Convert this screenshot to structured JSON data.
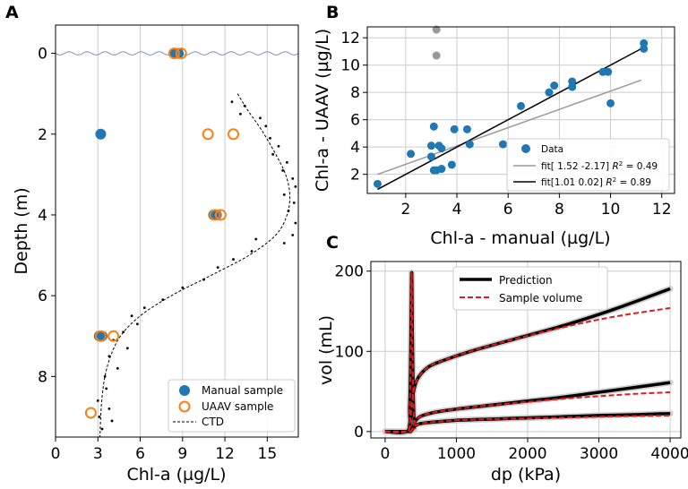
{
  "chart_data": [
    {
      "panel": "A",
      "type": "scatter",
      "xlabel": "Chl-a (µg/L)",
      "ylabel": "Depth (m)",
      "xlim": [
        0,
        17.2
      ],
      "ylim": [
        9.5,
        -0.7
      ],
      "y_inverted": true,
      "xticks": [
        0,
        3,
        6,
        9,
        12,
        15
      ],
      "yticks": [
        0,
        2,
        4,
        6,
        8
      ],
      "grid": "vertical",
      "legend": [
        "Manual sample",
        "UAAV sample",
        "CTD"
      ],
      "legend_location": "lower-right",
      "series": [
        {
          "name": "Manual sample",
          "points": [
            [
              8.5,
              0
            ],
            [
              8.7,
              0
            ],
            [
              3.2,
              2.0
            ],
            [
              11.2,
              4.0
            ],
            [
              11.4,
              4.0
            ],
            [
              3.1,
              7.0
            ],
            [
              3.3,
              7.0
            ]
          ]
        },
        {
          "name": "UAAV sample",
          "points": [
            [
              8.4,
              0
            ],
            [
              8.9,
              0
            ],
            [
              10.8,
              2.0
            ],
            [
              12.6,
              2.0
            ],
            [
              11.3,
              4.0
            ],
            [
              11.7,
              4.0
            ],
            [
              3.2,
              7.0
            ],
            [
              4.1,
              7.0
            ],
            [
              2.5,
              8.9
            ]
          ]
        },
        {
          "name": "CTD (fit)",
          "points": [
            [
              12.9,
              1.0
            ],
            [
              13.6,
              1.4
            ],
            [
              14.6,
              1.9
            ],
            [
              15.6,
              2.5
            ],
            [
              16.3,
              3.0
            ],
            [
              16.6,
              3.5
            ],
            [
              16.4,
              4.0
            ],
            [
              15.6,
              4.5
            ],
            [
              13.7,
              5.0
            ],
            [
              11.0,
              5.5
            ],
            [
              8.2,
              6.0
            ],
            [
              6.0,
              6.5
            ],
            [
              4.6,
              7.0
            ],
            [
              3.9,
              7.5
            ],
            [
              3.5,
              8.0
            ],
            [
              3.3,
              8.5
            ],
            [
              3.2,
              9.0
            ],
            [
              3.15,
              9.5
            ]
          ]
        },
        {
          "name": "CTD (raw)",
          "points": [
            [
              12.5,
              1.2
            ],
            [
              13.4,
              1.3
            ],
            [
              13.1,
              1.5
            ],
            [
              14.5,
              1.6
            ],
            [
              14.9,
              1.8
            ],
            [
              15.2,
              2.1
            ],
            [
              15.8,
              2.3
            ],
            [
              15.4,
              2.5
            ],
            [
              16.4,
              2.7
            ],
            [
              16.1,
              2.9
            ],
            [
              16.8,
              3.1
            ],
            [
              17.0,
              3.3
            ],
            [
              16.2,
              3.5
            ],
            [
              16.9,
              3.7
            ],
            [
              16.5,
              3.9
            ],
            [
              17.0,
              4.2
            ],
            [
              16.8,
              4.5
            ],
            [
              16.2,
              4.7
            ],
            [
              14.2,
              4.6
            ],
            [
              13.9,
              4.9
            ],
            [
              12.6,
              5.1
            ],
            [
              11.5,
              5.3
            ],
            [
              10.5,
              5.6
            ],
            [
              9.0,
              5.8
            ],
            [
              7.6,
              6.1
            ],
            [
              6.3,
              6.3
            ],
            [
              5.4,
              6.5
            ],
            [
              5.8,
              6.7
            ],
            [
              4.8,
              6.9
            ],
            [
              4.1,
              7.1
            ],
            [
              5.1,
              7.3
            ],
            [
              3.8,
              7.5
            ],
            [
              4.4,
              7.8
            ],
            [
              3.5,
              8.0
            ],
            [
              3.6,
              8.3
            ],
            [
              3.0,
              8.6
            ],
            [
              3.8,
              8.8
            ],
            [
              3.1,
              9.0
            ],
            [
              4.0,
              9.1
            ],
            [
              3.3,
              9.3
            ]
          ]
        }
      ]
    },
    {
      "panel": "B",
      "type": "scatter",
      "xlabel": "Chl-a - manual (µg/L)",
      "ylabel": "Chl-a - UAAV (µg/L)",
      "xlim": [
        0.5,
        12.5
      ],
      "ylim": [
        0.6,
        12.8
      ],
      "xticks": [
        2,
        4,
        6,
        8,
        10,
        12
      ],
      "yticks": [
        2,
        4,
        6,
        8,
        10,
        12
      ],
      "grid": "both",
      "legend_location": "lower-right",
      "legend": [
        "Data",
        "fit[ 1.52 -2.17] R² = 0.49",
        "fit[1.01 0.02] R² = 0.89"
      ],
      "data_points": [
        [
          0.9,
          1.3
        ],
        [
          2.2,
          3.5
        ],
        [
          3.0,
          3.3
        ],
        [
          3.0,
          4.1
        ],
        [
          3.1,
          2.3
        ],
        [
          3.1,
          5.5
        ],
        [
          3.2,
          2.3
        ],
        [
          3.3,
          4.1
        ],
        [
          3.4,
          2.4
        ],
        [
          3.4,
          3.9
        ],
        [
          3.8,
          2.7
        ],
        [
          3.9,
          5.3
        ],
        [
          4.4,
          5.3
        ],
        [
          4.5,
          4.2
        ],
        [
          5.8,
          4.2
        ],
        [
          6.5,
          7.0
        ],
        [
          7.6,
          8.0
        ],
        [
          7.8,
          8.5
        ],
        [
          8.5,
          8.4
        ],
        [
          8.5,
          8.8
        ],
        [
          9.7,
          9.5
        ],
        [
          9.9,
          9.5
        ],
        [
          10.0,
          7.2
        ],
        [
          11.3,
          11.2
        ],
        [
          11.3,
          11.6
        ]
      ],
      "outlier_points": [
        [
          3.2,
          12.6
        ],
        [
          3.2,
          10.7
        ]
      ],
      "fits": [
        {
          "name": "fit[ 1.52 -2.17] R² = 0.49",
          "x": [
            0.9,
            11.2
          ],
          "y": [
            2.0,
            8.9
          ],
          "color": "#999999"
        },
        {
          "name": "fit[1.01 0.02] R² = 0.89",
          "x": [
            0.9,
            11.3
          ],
          "y": [
            0.9,
            11.3
          ],
          "color": "#000000"
        }
      ]
    },
    {
      "panel": "C",
      "type": "line",
      "xlabel": "dp (kPa)",
      "ylabel": "vol (mL)",
      "xlim": [
        -200,
        4150
      ],
      "ylim": [
        -8,
        212
      ],
      "xticks": [
        0,
        1000,
        2000,
        3000,
        4000
      ],
      "yticks": [
        0,
        100,
        200
      ],
      "grid": "both",
      "legend": [
        "Prediction",
        "Sample volume"
      ],
      "legend_location": "upper-center",
      "series": [
        {
          "name": "Prediction (spike)",
          "x": [
            0,
            320,
            345,
            360,
            372,
            382,
            395,
            410
          ],
          "y": [
            0,
            1,
            30,
            100,
            198,
            120,
            45,
            3
          ],
          "color": "#000000"
        },
        {
          "name": "Prediction (upper)",
          "x": [
            330,
            360,
            390,
            450,
            600,
            800,
            1200,
            1800,
            2500,
            3200,
            4000
          ],
          "y": [
            0,
            20,
            45,
            65,
            80,
            88,
            100,
            115,
            132,
            152,
            178
          ],
          "color": "#000000"
        },
        {
          "name": "Prediction (middle)",
          "x": [
            0,
            300,
            370,
            420,
            500,
            700,
            1000,
            1500,
            2000,
            2500,
            3000,
            3500,
            4000
          ],
          "y": [
            0,
            0,
            1,
            12,
            19,
            24,
            28,
            33,
            38,
            43,
            49,
            55,
            61
          ],
          "color": "#000000"
        },
        {
          "name": "Prediction (lower)",
          "x": [
            0,
            300,
            370,
            420,
            500,
            700,
            1000,
            1500,
            2000,
            2500,
            3000,
            3500,
            4000
          ],
          "y": [
            0,
            0,
            1,
            7,
            10,
            12,
            14,
            15.5,
            17,
            18.5,
            20,
            21,
            22.5
          ],
          "color": "#000000"
        },
        {
          "name": "Sample volume (spike)",
          "x": [
            0,
            320,
            345,
            360,
            372,
            382,
            395,
            410
          ],
          "y": [
            0,
            1,
            30,
            100,
            199,
            120,
            45,
            3
          ],
          "color": "#e41a1c"
        },
        {
          "name": "Sample volume (upper)",
          "x": [
            330,
            360,
            390,
            450,
            600,
            800,
            1200,
            1800,
            2500,
            3200,
            4000
          ],
          "y": [
            0,
            20,
            45,
            65,
            80,
            88,
            100,
            115,
            130,
            143,
            154
          ],
          "color": "#e41a1c"
        },
        {
          "name": "Sample volume (middle)",
          "x": [
            0,
            300,
            370,
            420,
            500,
            700,
            1000,
            1500,
            2000,
            2500,
            3000,
            3500,
            4000
          ],
          "y": [
            0,
            0,
            1,
            12,
            19,
            24,
            28,
            33,
            37,
            41,
            44,
            47,
            49
          ],
          "color": "#e41a1c"
        },
        {
          "name": "Sample volume (lower)",
          "x": [
            0,
            300,
            370,
            420,
            500,
            700,
            1000,
            1500,
            2000,
            2500,
            3000,
            3500,
            4000
          ],
          "y": [
            0,
            0,
            1,
            7,
            10,
            12,
            14,
            15.5,
            16.5,
            17.5,
            18.5,
            19.5,
            20
          ],
          "color": "#e41a1c"
        }
      ]
    }
  ],
  "labels": {
    "panel_a": "A",
    "panel_b": "B",
    "panel_c": "C",
    "legend_a": [
      "Manual sample",
      "UAAV sample",
      "CTD"
    ],
    "legend_b": [
      "Data",
      "fit[ 1.52 -2.17] ",
      "fit[1.01 0.02] "
    ],
    "legend_b_r2": [
      "0.49",
      "0.89"
    ],
    "legend_c": [
      "Prediction",
      "Sample volume"
    ]
  },
  "colors": {
    "manual": "#1f77b4",
    "uaav": "#ff7f0e",
    "outlier": "#999999",
    "fit_gray": "#999999",
    "fit_black": "#000000",
    "prediction": "#000000",
    "sample_volume": "#e41a1c",
    "wave": "#7a8fd0",
    "grid": "#cccccc"
  }
}
